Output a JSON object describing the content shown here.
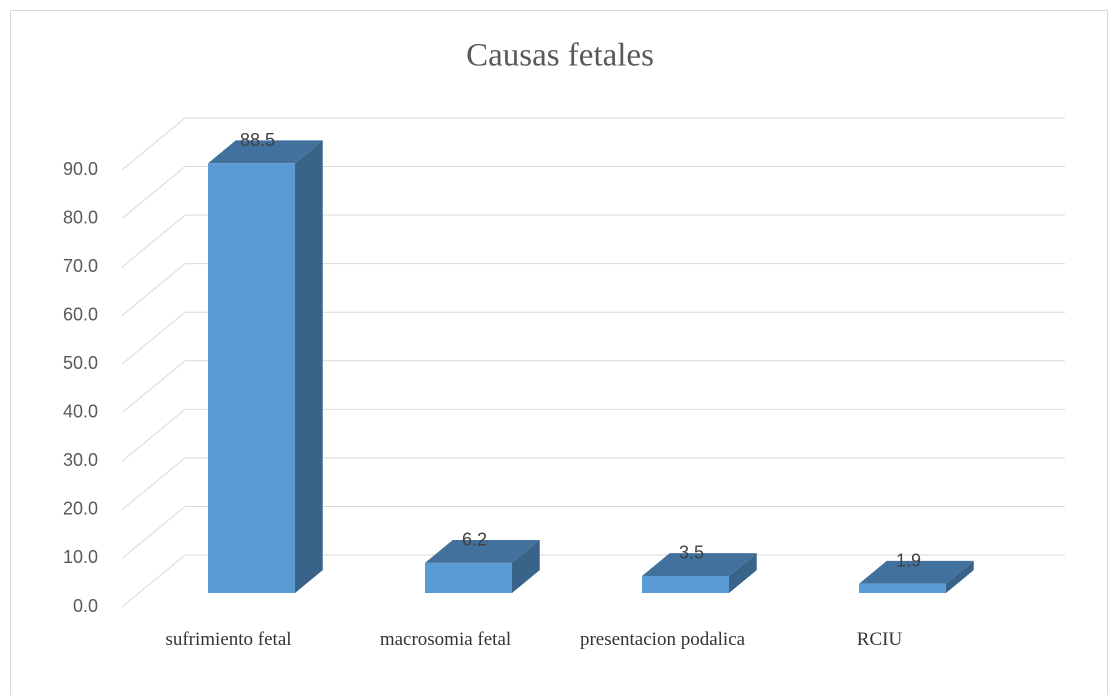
{
  "chart_data": {
    "type": "bar3d",
    "title": "Causas fetales",
    "categories": [
      "sufrimiento fetal",
      "macrosomia fetal",
      "presentacion podalica",
      "RCIU"
    ],
    "values": [
      88.5,
      6.2,
      3.5,
      1.9
    ],
    "color": "#5b9bd5",
    "ylim": [
      0,
      90
    ],
    "yticks": [
      {
        "value": 0,
        "label": "0.0"
      },
      {
        "value": 10,
        "label": "10.0"
      },
      {
        "value": 20,
        "label": "20.0"
      },
      {
        "value": 30,
        "label": "30.0"
      },
      {
        "value": 40,
        "label": "40.0"
      },
      {
        "value": 50,
        "label": "50.0"
      },
      {
        "value": 60,
        "label": "60.0"
      },
      {
        "value": 70,
        "label": "70.0"
      },
      {
        "value": 80,
        "label": "80.0"
      },
      {
        "value": 90,
        "label": "90.0"
      }
    ],
    "grid": true
  }
}
